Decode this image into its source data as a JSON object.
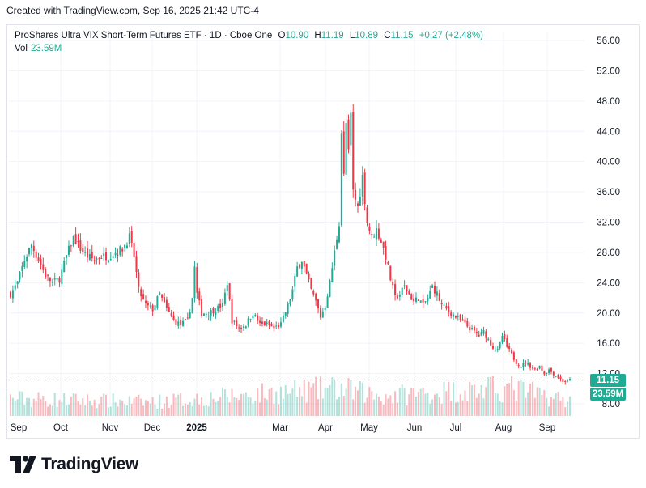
{
  "caption": "Created with TradingView.com, Sep 16, 2025 21:42 UTC-4",
  "legend": {
    "symbol": "ProShares Ultra VIX Short-Term Futures ETF · 1D · Cboe One",
    "o_label": "O",
    "o_value": "10.90",
    "h_label": "H",
    "h_value": "11.19",
    "l_label": "L",
    "l_value": "10.89",
    "c_label": "C",
    "c_value": "11.15",
    "change": "+0.27 (+2.48%)",
    "vol_label": "Vol",
    "vol_value": "23.59M"
  },
  "badges": {
    "price": "11.15",
    "volume": "23.59M"
  },
  "brand": "TradingView",
  "colors": {
    "up": "#22ab94",
    "down": "#f23645",
    "grid": "#f0f3fa",
    "text": "#131722",
    "badge": "#22ab94"
  },
  "chart_data": {
    "type": "candlestick",
    "y_ticks": [
      "56.00",
      "52.00",
      "48.00",
      "44.00",
      "40.00",
      "36.00",
      "32.00",
      "28.00",
      "24.00",
      "20.00",
      "16.00",
      "12.00",
      "8.00"
    ],
    "ylim": [
      6.5,
      57.5
    ],
    "x_ticks": [
      "Sep",
      "Oct",
      "Nov",
      "Dec",
      "2025",
      "Mar",
      "Apr",
      "May",
      "Jun",
      "Jul",
      "Aug",
      "Sep"
    ],
    "last_price": 11.15,
    "close_path": [
      [
        0,
        22.5
      ],
      [
        3,
        24
      ],
      [
        6,
        27
      ],
      [
        9,
        29
      ],
      [
        12,
        27
      ],
      [
        15,
        25
      ],
      [
        18,
        24
      ],
      [
        21,
        24.5
      ],
      [
        24,
        27.5
      ],
      [
        27,
        30
      ],
      [
        30,
        28.5
      ],
      [
        33,
        27.5
      ],
      [
        36,
        27
      ],
      [
        39,
        27.5
      ],
      [
        42,
        27.5
      ],
      [
        45,
        28
      ],
      [
        48,
        28.5
      ],
      [
        51,
        30
      ],
      [
        53,
        27.5
      ],
      [
        55,
        23
      ],
      [
        58,
        21
      ],
      [
        61,
        20.5
      ],
      [
        64,
        22.5
      ],
      [
        67,
        20.5
      ],
      [
        70,
        19
      ],
      [
        73,
        18.5
      ],
      [
        76,
        19
      ],
      [
        78,
        22
      ],
      [
        79,
        26
      ],
      [
        80,
        22.5
      ],
      [
        82,
        20
      ],
      [
        85,
        20
      ],
      [
        88,
        20.5
      ],
      [
        91,
        21
      ],
      [
        93,
        24
      ],
      [
        95,
        19
      ],
      [
        98,
        18
      ],
      [
        101,
        18.5
      ],
      [
        104,
        20
      ],
      [
        107,
        18.5
      ],
      [
        110,
        18.5
      ],
      [
        113,
        18
      ],
      [
        116,
        18.5
      ],
      [
        119,
        21
      ],
      [
        121,
        23
      ],
      [
        123,
        26
      ],
      [
        125,
        27
      ],
      [
        127,
        25
      ],
      [
        129,
        23
      ],
      [
        131,
        21.5
      ],
      [
        133,
        19.5
      ],
      [
        135,
        21
      ],
      [
        137,
        24
      ],
      [
        139,
        28
      ],
      [
        141,
        32
      ],
      [
        142,
        44
      ],
      [
        143,
        38
      ],
      [
        144,
        45
      ],
      [
        145,
        41
      ],
      [
        146,
        46
      ],
      [
        147,
        36
      ],
      [
        149,
        34
      ],
      [
        151,
        38
      ],
      [
        153,
        32
      ],
      [
        155,
        30
      ],
      [
        157,
        31
      ],
      [
        159,
        29.5
      ],
      [
        161,
        27.5
      ],
      [
        163,
        24.5
      ],
      [
        165,
        22
      ],
      [
        167,
        22.5
      ],
      [
        169,
        23.5
      ],
      [
        171,
        22.5
      ],
      [
        173,
        21.5
      ],
      [
        175,
        22
      ],
      [
        177,
        21
      ],
      [
        179,
        22
      ],
      [
        181,
        23.5
      ],
      [
        183,
        22.5
      ],
      [
        185,
        21
      ],
      [
        187,
        20.5
      ],
      [
        189,
        20
      ],
      [
        191,
        19.5
      ],
      [
        193,
        19
      ],
      [
        195,
        18.5
      ],
      [
        197,
        18
      ],
      [
        199,
        17.5
      ],
      [
        201,
        17
      ],
      [
        203,
        17.5
      ],
      [
        205,
        16.5
      ],
      [
        207,
        15.5
      ],
      [
        209,
        15
      ],
      [
        211,
        17
      ],
      [
        213,
        15.5
      ],
      [
        215,
        14.5
      ],
      [
        217,
        13.5
      ],
      [
        219,
        13
      ],
      [
        221,
        13.5
      ],
      [
        223,
        13
      ],
      [
        225,
        12.5
      ],
      [
        227,
        13
      ],
      [
        229,
        12
      ],
      [
        231,
        12.5
      ],
      [
        233,
        12
      ],
      [
        235,
        11.5
      ],
      [
        237,
        11
      ],
      [
        239,
        10.9
      ],
      [
        240,
        11.15
      ]
    ],
    "volume_bands": [
      [
        0,
        0.35
      ],
      [
        60,
        0.28
      ],
      [
        140,
        0.55
      ],
      [
        160,
        0.4
      ],
      [
        190,
        0.5
      ],
      [
        215,
        0.55
      ],
      [
        240,
        0.3
      ]
    ],
    "total_bars": 241
  }
}
